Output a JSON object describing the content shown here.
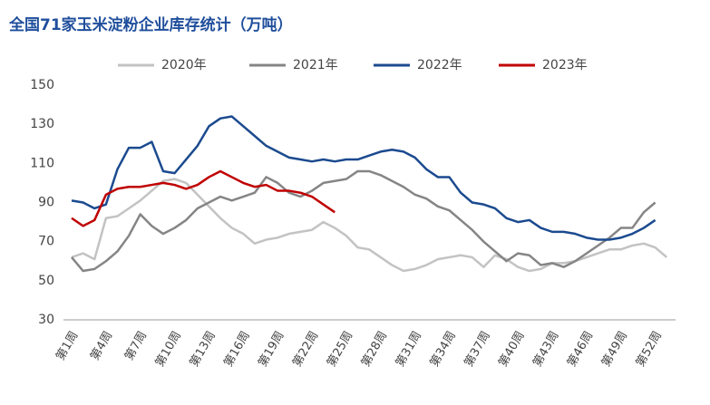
{
  "chart_data": {
    "type": "line",
    "title": "全国71家玉米淀粉企业库存统计（万吨）",
    "categories": [
      "第1周",
      null,
      null,
      "第4周",
      null,
      null,
      "第7周",
      null,
      null,
      "第10周",
      null,
      null,
      "第13周",
      null,
      null,
      "第16周",
      null,
      null,
      "第19周",
      null,
      null,
      "第22周",
      null,
      null,
      "第25周",
      null,
      null,
      "第28周",
      null,
      null,
      "第31周",
      null,
      null,
      "第34周",
      null,
      null,
      "第37周",
      null,
      null,
      "第40周",
      null,
      null,
      "第43周",
      null,
      null,
      "第46周",
      null,
      null,
      "第49周",
      null,
      null,
      "第52周",
      null
    ],
    "series": [
      {
        "name": "2020年",
        "color": "#c3c3c3",
        "values": [
          62,
          64,
          61,
          82,
          83,
          87,
          91,
          96,
          101,
          102,
          100,
          94,
          88,
          82,
          77,
          74,
          69,
          71,
          72,
          74,
          75,
          76,
          80,
          77,
          73,
          67,
          66,
          62,
          58,
          55,
          56,
          58,
          61,
          62,
          63,
          62,
          57,
          63,
          61,
          57,
          55,
          56,
          59,
          59,
          60,
          62,
          64,
          66,
          66,
          68,
          69,
          67,
          62
        ]
      },
      {
        "name": "2021年",
        "color": "#858585",
        "values": [
          62,
          55,
          56,
          60,
          65,
          73,
          84,
          78,
          74,
          77,
          81,
          87,
          90,
          93,
          91,
          93,
          95,
          103,
          100,
          95,
          93,
          96,
          100,
          101,
          102,
          106,
          106,
          104,
          101,
          98,
          94,
          92,
          88,
          86,
          81,
          76,
          70,
          65,
          60,
          64,
          63,
          58,
          59,
          57,
          60,
          64,
          68,
          72,
          77,
          77,
          85,
          90,
          null
        ]
      },
      {
        "name": "2022年",
        "color": "#1b4a8f",
        "values": [
          91,
          90,
          87,
          89,
          107,
          118,
          118,
          121,
          106,
          105,
          112,
          119,
          129,
          133,
          134,
          129,
          124,
          119,
          116,
          113,
          112,
          111,
          112,
          111,
          112,
          112,
          114,
          116,
          117,
          116,
          113,
          107,
          103,
          103,
          95,
          90,
          89,
          87,
          82,
          80,
          81,
          77,
          75,
          75,
          74,
          72,
          71,
          71,
          72,
          74,
          77,
          81,
          null
        ]
      },
      {
        "name": "2023年",
        "color": "#c00000",
        "values": [
          82,
          78,
          81,
          94,
          97,
          98,
          98,
          99,
          100,
          99,
          97,
          99,
          103,
          106,
          103,
          100,
          98,
          99,
          96,
          96,
          95,
          93,
          89,
          85,
          null,
          null,
          null,
          null,
          null,
          null,
          null,
          null,
          null,
          null,
          null,
          null,
          null,
          null,
          null,
          null,
          null,
          null,
          null,
          null,
          null,
          null,
          null,
          null,
          null,
          null,
          null,
          null,
          null
        ]
      }
    ],
    "ylim": [
      30,
      150
    ],
    "yticks": [
      30,
      50,
      70,
      90,
      110,
      130,
      150
    ]
  }
}
